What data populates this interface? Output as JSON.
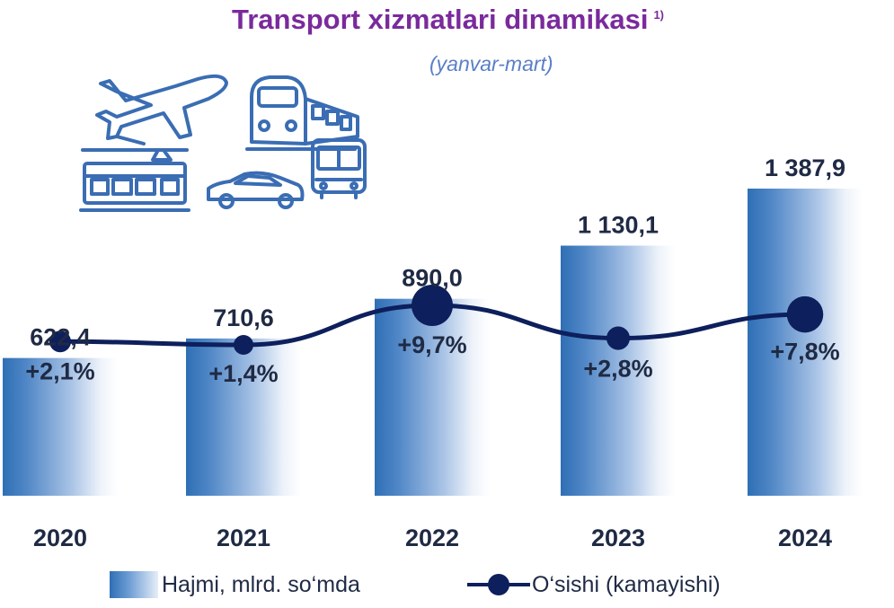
{
  "title": "Transport xizmatlari dinamikasi",
  "title_note": "1)",
  "subtitle": "(yanvar-mart)",
  "colors": {
    "title": "#7a2a9c",
    "subtitle": "#5b7fc7",
    "bar_dark": "#2f6fb5",
    "bar_light": "#e6eef8",
    "line": "#0d1f5c",
    "text": "#1f2a44",
    "icons": "#3a6db3"
  },
  "icons": [
    "airplane-icon",
    "train-icon",
    "tram-icon",
    "car-icon",
    "bus-icon"
  ],
  "chart_data": {
    "type": "bar",
    "categories": [
      "2020",
      "2021",
      "2022",
      "2023",
      "2024"
    ],
    "series": [
      {
        "name": "Hajmi, mlrd. so‘mda",
        "type": "bar",
        "values": [
          622.4,
          710.6,
          890.0,
          1130.1,
          1387.9
        ],
        "labels": [
          "622,4",
          "710,6",
          "890,0",
          "1 130,1",
          "1 387,9"
        ]
      },
      {
        "name": "O‘sishi (kamayishi)",
        "type": "line",
        "values": [
          2.1,
          1.4,
          9.7,
          2.8,
          7.8
        ],
        "labels": [
          "+2,1%",
          "+1,4%",
          "+9,7%",
          "+2,8%",
          "+7,8%"
        ]
      }
    ],
    "legend": "bottom",
    "grid": false
  },
  "legend": {
    "bar_label": "Hajmi, mlrd. so‘mda",
    "line_label": "O‘sishi (kamayishi)"
  }
}
